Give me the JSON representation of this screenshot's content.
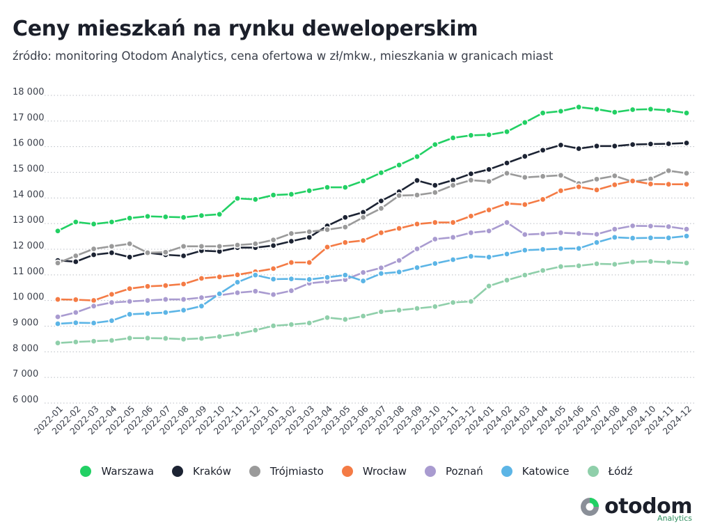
{
  "header": {
    "title": "Ceny mieszkań na rynku deweloperskim",
    "subtitle": "źródło: monitoring Otodom Analytics, cena ofertowa w zł/mkw., mieszkania w granicach miast"
  },
  "logo": {
    "word": "otodom",
    "sub": "Analytics"
  },
  "chart_data": {
    "type": "line",
    "title": "Ceny mieszkań na rynku deweloperskim",
    "xlabel": "",
    "ylabel": "",
    "ylim": [
      6000,
      18000
    ],
    "yticks": [
      6000,
      7000,
      8000,
      9000,
      10000,
      11000,
      12000,
      13000,
      14000,
      15000,
      16000,
      17000,
      18000
    ],
    "ytick_labels": [
      "6 000",
      "7 000",
      "8 000",
      "9 000",
      "10 000",
      "11 000",
      "12 000",
      "13 000",
      "14 000",
      "15 000",
      "16 000",
      "17 000",
      "18 000"
    ],
    "grid": "horizontal dotted",
    "legend_position": "bottom-center",
    "x": [
      "2022-01",
      "2022-02",
      "2022-03",
      "2022-04",
      "2022-05",
      "2022-06",
      "2022-07",
      "2022-08",
      "2022-09",
      "2022-10",
      "2022-11",
      "2022-12",
      "2023-01",
      "2023-02",
      "2023-03",
      "2023-04",
      "2023-05",
      "2023-06",
      "2023-07",
      "2023-08",
      "2023-09",
      "2023-10",
      "2023-11",
      "2023-12",
      "2024-01",
      "2024-02",
      "2024-03",
      "2024-04",
      "2024-05",
      "2024-06",
      "2024-07",
      "2024-08",
      "2024-09",
      "2024-10",
      "2024-11",
      "2024-12"
    ],
    "series": [
      {
        "name": "Warszawa",
        "color": "#22d064",
        "values": [
          12550,
          12900,
          12820,
          12900,
          13050,
          13120,
          13100,
          13080,
          13150,
          13200,
          13820,
          13780,
          13950,
          13980,
          14120,
          14250,
          14250,
          14500,
          14820,
          15120,
          15450,
          15920,
          16180,
          16280,
          16300,
          16420,
          16780,
          17150,
          17220,
          17380,
          17300,
          17180,
          17280,
          17300,
          17250,
          17150
        ]
      },
      {
        "name": "Kraków",
        "color": "#1c2333",
        "values": [
          11400,
          11350,
          11620,
          11700,
          11530,
          11700,
          11620,
          11580,
          11780,
          11750,
          11900,
          11900,
          11980,
          12150,
          12300,
          12750,
          13080,
          13280,
          13720,
          14080,
          14520,
          14330,
          14530,
          14780,
          14950,
          15200,
          15460,
          15700,
          15900,
          15760,
          15860,
          15860,
          15920,
          15940,
          15950,
          15980
        ]
      },
      {
        "name": "Trójmiasto",
        "color": "#9a9a9a",
        "values": [
          11300,
          11580,
          11850,
          11950,
          12050,
          11700,
          11720,
          11950,
          11950,
          11950,
          12000,
          12050,
          12200,
          12450,
          12520,
          12600,
          12700,
          13080,
          13430,
          13930,
          13950,
          14050,
          14330,
          14530,
          14480,
          14800,
          14640,
          14680,
          14720,
          14400,
          14570,
          14700,
          14470,
          14580,
          14900,
          14800
        ]
      },
      {
        "name": "Wrocław",
        "color": "#f47b45",
        "values": [
          9880,
          9870,
          9840,
          10080,
          10300,
          10390,
          10420,
          10480,
          10700,
          10760,
          10840,
          10960,
          11080,
          11320,
          11320,
          11920,
          12100,
          12180,
          12480,
          12650,
          12820,
          12880,
          12880,
          13130,
          13370,
          13620,
          13580,
          13780,
          14120,
          14270,
          14150,
          14350,
          14500,
          14380,
          14370,
          14370
        ]
      },
      {
        "name": "Poznań",
        "color": "#a99bd0",
        "values": [
          9200,
          9370,
          9620,
          9760,
          9800,
          9840,
          9880,
          9880,
          9950,
          10040,
          10140,
          10200,
          10070,
          10220,
          10510,
          10580,
          10650,
          10930,
          11110,
          11400,
          11850,
          12230,
          12300,
          12480,
          12550,
          12880,
          12410,
          12440,
          12480,
          12450,
          12420,
          12620,
          12750,
          12740,
          12720,
          12620
        ]
      },
      {
        "name": "Katowice",
        "color": "#5cb5e6",
        "values": [
          8930,
          8970,
          8960,
          9050,
          9300,
          9330,
          9370,
          9460,
          9620,
          10100,
          10550,
          10830,
          10670,
          10680,
          10660,
          10740,
          10830,
          10600,
          10890,
          10950,
          11120,
          11280,
          11430,
          11560,
          11530,
          11650,
          11800,
          11830,
          11860,
          11870,
          12100,
          12300,
          12270,
          12280,
          12280,
          12350
        ]
      },
      {
        "name": "Łódź",
        "color": "#8fcfaa",
        "values": [
          8180,
          8220,
          8250,
          8280,
          8370,
          8370,
          8360,
          8330,
          8360,
          8430,
          8530,
          8680,
          8850,
          8900,
          8960,
          9170,
          9100,
          9230,
          9400,
          9460,
          9530,
          9600,
          9760,
          9800,
          10400,
          10630,
          10830,
          11010,
          11160,
          11190,
          11270,
          11250,
          11340,
          11360,
          11330,
          11300
        ]
      }
    ]
  }
}
